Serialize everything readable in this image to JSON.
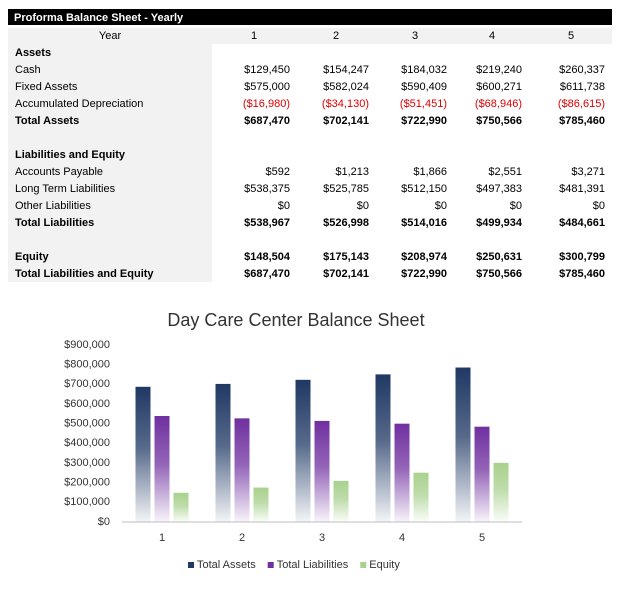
{
  "table": {
    "title": "Proforma Balance Sheet - Yearly",
    "header": [
      "Year",
      "1",
      "2",
      "3",
      "4",
      "5"
    ],
    "sections": [
      {
        "title": "Assets",
        "rows": [
          {
            "label": "Cash",
            "values": [
              "$129,450",
              "$154,247",
              "$184,032",
              "$219,240",
              "$260,337"
            ]
          },
          {
            "label": "Fixed Assets",
            "values": [
              "$575,000",
              "$582,024",
              "$590,409",
              "$600,271",
              "$611,738"
            ]
          },
          {
            "label": "Accumulated Depreciation",
            "values": [
              "($16,980)",
              "($34,130)",
              "($51,451)",
              "($68,946)",
              "($86,615)"
            ],
            "color": "#e00000"
          },
          {
            "label": "Total Assets",
            "values": [
              "$687,470",
              "$702,141",
              "$722,990",
              "$750,566",
              "$785,460"
            ],
            "bold": true
          }
        ]
      },
      {
        "title": "Liabilities and Equity",
        "rows": [
          {
            "label": "Accounts Payable",
            "values": [
              "$592",
              "$1,213",
              "$1,866",
              "$2,551",
              "$3,271"
            ]
          },
          {
            "label": "Long Term Liabilities",
            "values": [
              "$538,375",
              "$525,785",
              "$512,150",
              "$497,383",
              "$481,391"
            ]
          },
          {
            "label": "Other Liabilities",
            "values": [
              "$0",
              "$0",
              "$0",
              "$0",
              "$0"
            ]
          },
          {
            "label": "Total Liabilities",
            "values": [
              "$538,967",
              "$526,998",
              "$514,016",
              "$499,934",
              "$484,661"
            ],
            "bold": true
          }
        ]
      },
      {
        "rows": [
          {
            "label": "Equity",
            "values": [
              "$148,504",
              "$175,143",
              "$208,974",
              "$250,631",
              "$300,799"
            ],
            "bold": true
          },
          {
            "label": "Total Liabilities and Equity",
            "values": [
              "$687,470",
              "$702,141",
              "$722,990",
              "$750,566",
              "$785,460"
            ],
            "bold": true
          }
        ]
      }
    ]
  },
  "chart_data": {
    "type": "bar",
    "title": "Day Care Center Balance Sheet",
    "categories": [
      "1",
      "2",
      "3",
      "4",
      "5"
    ],
    "series": [
      {
        "name": "Total Assets",
        "color": "#1f3864",
        "values": [
          687470,
          702141,
          722990,
          750566,
          785460
        ]
      },
      {
        "name": "Total Liabilities",
        "color": "#7030a0",
        "values": [
          538967,
          526998,
          514016,
          499934,
          484661
        ]
      },
      {
        "name": "Equity",
        "color": "#a9d18e",
        "values": [
          148504,
          175143,
          208974,
          250631,
          300799
        ]
      }
    ],
    "ylim": [
      0,
      900000
    ],
    "yticks": [
      {
        "value": 0,
        "label": "$0"
      },
      {
        "value": 100000,
        "label": "$100,000"
      },
      {
        "value": 200000,
        "label": "$200,000"
      },
      {
        "value": 300000,
        "label": "$300,000"
      },
      {
        "value": 400000,
        "label": "$400,000"
      },
      {
        "value": 500000,
        "label": "$500,000"
      },
      {
        "value": 600000,
        "label": "$600,000"
      },
      {
        "value": 700000,
        "label": "$700,000"
      },
      {
        "value": 800000,
        "label": "$800,000"
      },
      {
        "value": 900000,
        "label": "$900,000"
      }
    ],
    "grid": false,
    "legend": "bottom"
  }
}
